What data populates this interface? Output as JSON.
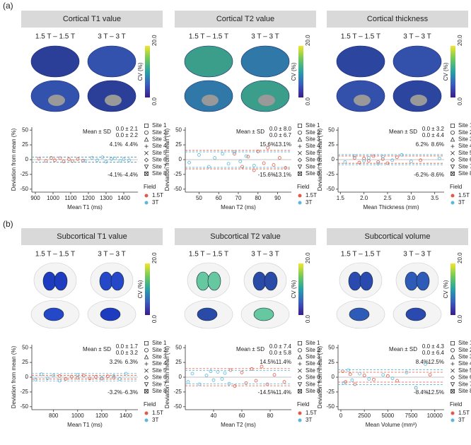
{
  "panel_labels": [
    "(a)",
    "(b)"
  ],
  "chart_data": [
    {
      "type": "scatter",
      "title": "Cortical T1 value",
      "map_labels": [
        "1.5 T – 1.5 T",
        "3 T – 3 T"
      ],
      "colorbar": {
        "label": "CV (%)",
        "ticks": [
          {
            "value": 20,
            "label": "20.0"
          },
          {
            "value": 0,
            "label": "0.0"
          }
        ]
      },
      "xlabel": "Mean T1 (ms)",
      "ylabel": "Deviation from mean (%)",
      "stats_title": "Mean ± SD",
      "sites": [
        "Site 1",
        "Site 2",
        "Site 3",
        "Site 4",
        "Site 5",
        "Site 6",
        "Site 7",
        "Site 8"
      ],
      "legend_title": "Field",
      "xlim": [
        880,
        1480
      ],
      "xticks": [
        900,
        1000,
        1100,
        1200,
        1300,
        1400
      ],
      "ylim": [
        -55,
        55
      ],
      "yticks": [
        -50,
        -25,
        0,
        25,
        50
      ],
      "series": [
        {
          "name": "1.5T",
          "color": "#e05a47",
          "mean_sd": "0.0 ± 2.1",
          "limits": [
            {
              "value": 4.1,
              "label": "4.1%"
            },
            {
              "value": -4.1,
              "label": "-4.1%"
            }
          ],
          "x": [
            920,
            960,
            990,
            1010,
            1040,
            1060,
            1090,
            1110,
            1140,
            1170
          ],
          "values": [
            1.5,
            -2,
            3,
            -1,
            2.5,
            -3,
            0.5,
            -2.5,
            1,
            -1.5
          ]
        },
        {
          "name": "3T",
          "color": "#5bb8d8",
          "mean_sd": "0.0 ± 2.2",
          "limits": [
            {
              "value": 4.4,
              "label": "4.4%"
            },
            {
              "value": -4.4,
              "label": "-4.4%"
            }
          ],
          "x": [
            1180,
            1220,
            1250,
            1280,
            1300,
            1330,
            1350,
            1380,
            1400,
            1430
          ],
          "values": [
            -2,
            3,
            -1,
            4,
            -3.5,
            1,
            2,
            -2,
            0.5,
            -1
          ]
        }
      ]
    },
    {
      "type": "scatter",
      "title": "Cortical T2 value",
      "map_labels": [
        "1.5 T – 1.5 T",
        "3 T – 3 T"
      ],
      "colorbar": {
        "label": "CV (%)",
        "ticks": [
          {
            "value": 20,
            "label": "20.0"
          },
          {
            "value": 0,
            "label": "0.0"
          }
        ]
      },
      "xlabel": "Mean T2 (ms)",
      "ylabel": "Deviation from mean (%)",
      "stats_title": "Mean ± SD",
      "sites": [
        "Site 1",
        "Site 2",
        "Site 3",
        "Site 4",
        "Site 5",
        "Site 6",
        "Site 7",
        "Site 8"
      ],
      "legend_title": "Field",
      "xlim": [
        43,
        97
      ],
      "xticks": [
        50,
        60,
        70,
        80,
        90
      ],
      "ylim": [
        -55,
        55
      ],
      "yticks": [
        -50,
        -25,
        0,
        25,
        50
      ],
      "series": [
        {
          "name": "1.5T",
          "color": "#e05a47",
          "mean_sd": "0.0 ± 8.0",
          "limits": [
            {
              "value": 15.6,
              "label": "15.6%"
            },
            {
              "value": -15.6,
              "label": "-15.6%"
            }
          ],
          "x": [
            68,
            72,
            75,
            78,
            80,
            83,
            85,
            88,
            91,
            94
          ],
          "values": [
            10,
            -12,
            5,
            -18,
            14,
            -6,
            20,
            -9,
            3,
            -14
          ]
        },
        {
          "name": "3T",
          "color": "#5bb8d8",
          "mean_sd": "0.0 ± 6.7",
          "limits": [
            {
              "value": 13.1,
              "label": "13.1%"
            },
            {
              "value": -13.1,
              "label": "-13.1%"
            }
          ],
          "x": [
            45,
            50,
            55,
            58,
            62,
            65,
            68,
            71,
            74,
            78
          ],
          "values": [
            -5,
            8,
            -12,
            3,
            10,
            -7,
            13,
            -3,
            6,
            -10
          ]
        }
      ]
    },
    {
      "type": "scatter",
      "title": "Cortical thickness",
      "map_labels": [
        "1.5 T – 1.5 T",
        "3 T – 3 T"
      ],
      "colorbar": {
        "label": "CV (%)",
        "ticks": [
          {
            "value": 20,
            "label": "20.0"
          },
          {
            "value": 0,
            "label": "0.0"
          }
        ]
      },
      "xlabel": "Mean Thickness (mm)",
      "ylabel": "Deviation from mean (%)",
      "stats_title": "Mean ± SD",
      "sites": [
        "Site 1",
        "Site 2",
        "Site 3",
        "Site 4",
        "Site 5",
        "Site 6",
        "Site 7",
        "Site 8"
      ],
      "legend_title": "Field",
      "xlim": [
        1.45,
        3.7
      ],
      "xticks": [
        1.5,
        {
          "value": 2,
          "label": "2.0"
        },
        2.5,
        {
          "value": 3,
          "label": "3.0"
        },
        3.5
      ],
      "ylim": [
        -55,
        55
      ],
      "yticks": [
        -50,
        -25,
        0,
        25,
        50
      ],
      "series": [
        {
          "name": "1.5T",
          "color": "#e05a47",
          "mean_sd": "0.0 ± 3.2",
          "limits": [
            {
              "value": 6.2,
              "label": "6.2%"
            },
            {
              "value": -6.2,
              "label": "-6.2%"
            }
          ],
          "x": [
            1.8,
            1.9,
            2.0,
            2.1,
            2.2,
            2.3,
            2.4,
            2.5,
            2.7,
            3.2
          ],
          "values": [
            3,
            -5,
            2,
            -2,
            6,
            -4,
            1,
            -6,
            4,
            -1
          ]
        },
        {
          "name": "3T",
          "color": "#5bb8d8",
          "mean_sd": "0.0 ± 4.4",
          "limits": [
            {
              "value": 8.6,
              "label": "8.6%"
            },
            {
              "value": -8.6,
              "label": "-8.6%"
            }
          ],
          "x": [
            1.6,
            1.8,
            2.0,
            2.1,
            2.3,
            2.4,
            2.6,
            2.8,
            3.0,
            3.6
          ],
          "values": [
            -4,
            6,
            -2,
            3,
            -7,
            5,
            -1,
            8,
            -3,
            2
          ]
        }
      ]
    },
    {
      "type": "scatter",
      "title": "Subcortical T1 value",
      "map_labels": [
        "1.5 T – 1.5 T",
        "3 T – 3 T"
      ],
      "colorbar": {
        "label": "CV (%)",
        "ticks": [
          {
            "value": 20,
            "label": "20.0"
          },
          {
            "value": 0,
            "label": "0.0"
          }
        ]
      },
      "xlabel": "Mean T1 (ms)",
      "ylabel": "Deviation from mean (%)",
      "stats_title": "Mean ± SD",
      "sites": [
        "Site 1",
        "Site 2",
        "Site 3",
        "Site 4",
        "Site 5",
        "Site 6",
        "Site 7",
        "Site 8"
      ],
      "legend_title": "Field",
      "xlim": [
        620,
        1500
      ],
      "xticks": [
        800,
        1000,
        1200,
        1400
      ],
      "ylim": [
        -55,
        55
      ],
      "yticks": [
        -50,
        -25,
        0,
        25,
        50
      ],
      "series": [
        {
          "name": "1.5T",
          "color": "#e05a47",
          "mean_sd": "0.0 ± 1.7",
          "limits": [
            {
              "value": 3.2,
              "label": "3.2%"
            },
            {
              "value": -3.2,
              "label": "-3.2%"
            }
          ],
          "x": [
            850,
            900,
            950,
            1000,
            1050,
            1100,
            1150,
            1200,
            1250,
            1300
          ],
          "values": [
            2,
            -3,
            1,
            -1,
            3,
            -2,
            0.5,
            -2.5,
            1.5,
            -1
          ]
        },
        {
          "name": "3T",
          "color": "#5bb8d8",
          "mean_sd": "0.0 ± 3.2",
          "limits": [
            {
              "value": 6.3,
              "label": "6.3%"
            },
            {
              "value": -6.3,
              "label": "-6.3%"
            }
          ],
          "x": [
            650,
            700,
            750,
            800,
            850,
            1000,
            1200,
            1300,
            1350,
            1400
          ],
          "values": [
            -4,
            5,
            -2,
            3,
            -6,
            4,
            -1,
            2,
            -3,
            6
          ]
        }
      ]
    },
    {
      "type": "scatter",
      "title": "Subcortical T2 value",
      "map_labels": [
        "1.5 T – 1.5 T",
        "3 T – 3 T"
      ],
      "colorbar": {
        "label": "CV (%)",
        "ticks": [
          {
            "value": 20,
            "label": "20.0"
          },
          {
            "value": 0,
            "label": "0.0"
          }
        ]
      },
      "xlabel": "Mean T2 (ms)",
      "ylabel": "Deviation from mean (%)",
      "stats_title": "Mean ± SD",
      "sites": [
        "Site 1",
        "Site 2",
        "Site 3",
        "Site 4",
        "Site 5",
        "Site 6",
        "Site 7",
        "Site 8"
      ],
      "legend_title": "Field",
      "xlim": [
        20,
        95
      ],
      "xticks": [
        40,
        60,
        80
      ],
      "ylim": [
        -55,
        55
      ],
      "yticks": [
        -50,
        -25,
        0,
        25,
        50
      ],
      "series": [
        {
          "name": "1.5T",
          "color": "#e05a47",
          "mean_sd": "0.0 ± 7.4",
          "limits": [
            {
              "value": 14.5,
              "label": "14.5%"
            },
            {
              "value": -14.5,
              "label": "-14.5%"
            }
          ],
          "x": [
            52,
            55,
            60,
            63,
            67,
            70,
            74,
            78,
            83,
            90
          ],
          "values": [
            12,
            -15,
            8,
            -10,
            14,
            -6,
            18,
            -12,
            4,
            -8
          ]
        },
        {
          "name": "3T",
          "color": "#5bb8d8",
          "mean_sd": "0.0 ± 5.8",
          "limits": [
            {
              "value": 11.4,
              "label": "11.4%"
            },
            {
              "value": -11.4,
              "label": "-11.4%"
            }
          ],
          "x": [
            22,
            25,
            30,
            35,
            38,
            40,
            43,
            46,
            48,
            51
          ],
          "values": [
            -8,
            6,
            -12,
            3,
            10,
            -5,
            9,
            -3,
            7,
            -11
          ]
        }
      ]
    },
    {
      "type": "scatter",
      "title": "Subcortical volume",
      "map_labels": [
        "1.5 T – 1.5 T",
        "3 T – 3 T"
      ],
      "colorbar": {
        "label": "CV (%)",
        "ticks": [
          {
            "value": 20,
            "label": "20.0"
          },
          {
            "value": 0,
            "label": "0.0"
          }
        ]
      },
      "xlabel": "Mean Volume (mm³)",
      "ylabel": "Deviation from mean (%)",
      "stats_title": "Mean ± SD",
      "sites": [
        "Site 1",
        "Site 2",
        "Site 3",
        "Site 4",
        "Site 5",
        "Site 6",
        "Site 7",
        "Site 8"
      ],
      "legend_title": "Field",
      "xlim": [
        -300,
        11000
      ],
      "xticks": [
        0,
        2500,
        5000,
        7500,
        10000
      ],
      "ylim": [
        -55,
        55
      ],
      "yticks": [
        -50,
        -25,
        0,
        25,
        50
      ],
      "series": [
        {
          "name": "1.5T",
          "color": "#e05a47",
          "mean_sd": "0.0 ± 4.3",
          "limits": [
            {
              "value": 8.4,
              "label": "8.4%"
            },
            {
              "value": -8.4,
              "label": "-8.4%"
            }
          ],
          "x": [
            200,
            500,
            1000,
            1500,
            2500,
            3500,
            5000,
            6000,
            8000,
            9500
          ],
          "values": [
            10,
            -8,
            5,
            -12,
            3,
            -4,
            2,
            -6,
            -18,
            4
          ]
        },
        {
          "name": "3T",
          "color": "#5bb8d8",
          "mean_sd": "0.0 ± 6.4",
          "limits": [
            {
              "value": 12.5,
              "label": "12.5%"
            },
            {
              "value": -12.5,
              "label": "-12.5%"
            }
          ],
          "x": [
            300,
            800,
            1200,
            2000,
            3000,
            4500,
            5500,
            7000,
            8000,
            9000
          ],
          "values": [
            -10,
            12,
            -5,
            6,
            -3,
            4,
            -2,
            8,
            -18,
            22
          ]
        }
      ]
    }
  ]
}
